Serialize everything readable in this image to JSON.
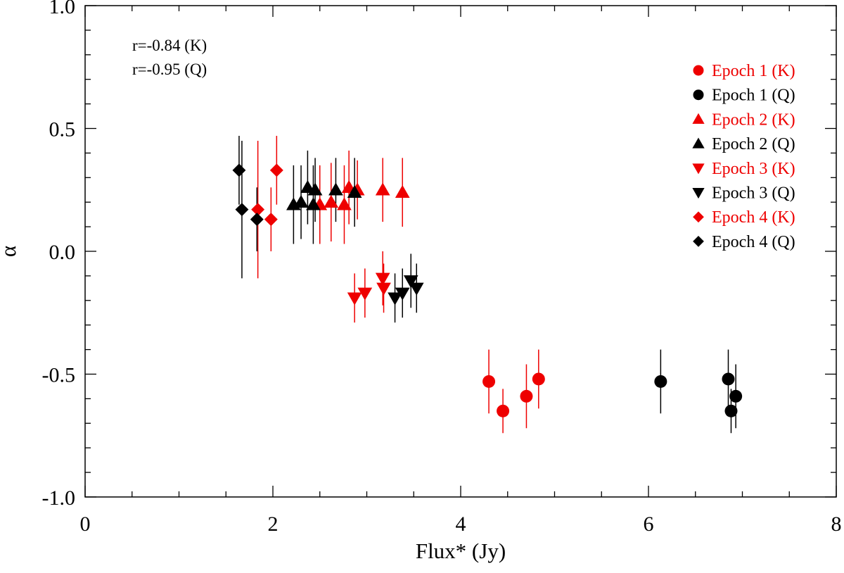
{
  "chart_data": {
    "type": "scatter",
    "xlabel": "Flux* (Jy)",
    "ylabel": "α",
    "xlim": [
      0,
      8
    ],
    "ylim": [
      -1.0,
      1.0
    ],
    "x_ticks": [
      "0",
      "2",
      "4",
      "6",
      "8"
    ],
    "y_ticks": [
      "1.0",
      "0.5",
      "0.0",
      "-0.5",
      "-1.0"
    ],
    "grid": false,
    "legend_placement": "top-right",
    "annotations": [
      "r=-0.84 (K)",
      "r=-0.95 (Q)"
    ],
    "colors": {
      "K": "#ee0000",
      "Q": "#000000"
    },
    "series": [
      {
        "name": "Epoch 1 (K)",
        "marker": "circle",
        "color": "#ee0000",
        "points": [
          {
            "x": 4.3,
            "y": -0.53,
            "err": 0.13
          },
          {
            "x": 4.45,
            "y": -0.65,
            "err": 0.09
          },
          {
            "x": 4.7,
            "y": -0.59,
            "err": 0.13
          },
          {
            "x": 4.83,
            "y": -0.52,
            "err": 0.12
          }
        ]
      },
      {
        "name": "Epoch 1 (Q)",
        "marker": "circle",
        "color": "#000000",
        "points": [
          {
            "x": 6.13,
            "y": -0.53,
            "err": 0.13
          },
          {
            "x": 6.85,
            "y": -0.52,
            "err": 0.12
          },
          {
            "x": 6.88,
            "y": -0.65,
            "err": 0.09
          },
          {
            "x": 6.93,
            "y": -0.59,
            "err": 0.13
          }
        ]
      },
      {
        "name": "Epoch 2 (K)",
        "marker": "triangle-up",
        "color": "#ee0000",
        "points": [
          {
            "x": 2.5,
            "y": 0.19,
            "err": 0.16
          },
          {
            "x": 2.62,
            "y": 0.2,
            "err": 0.16
          },
          {
            "x": 2.76,
            "y": 0.19,
            "err": 0.16
          },
          {
            "x": 2.81,
            "y": 0.26,
            "err": 0.15
          },
          {
            "x": 2.9,
            "y": 0.25,
            "err": 0.12
          },
          {
            "x": 3.17,
            "y": 0.25,
            "err": 0.13
          },
          {
            "x": 3.38,
            "y": 0.24,
            "err": 0.14
          }
        ]
      },
      {
        "name": "Epoch 2 (Q)",
        "marker": "triangle-up",
        "color": "#000000",
        "points": [
          {
            "x": 2.22,
            "y": 0.19,
            "err": 0.16
          },
          {
            "x": 2.3,
            "y": 0.2,
            "err": 0.15
          },
          {
            "x": 2.37,
            "y": 0.26,
            "err": 0.15
          },
          {
            "x": 2.43,
            "y": 0.19,
            "err": 0.16
          },
          {
            "x": 2.45,
            "y": 0.25,
            "err": 0.13
          },
          {
            "x": 2.67,
            "y": 0.25,
            "err": 0.13
          },
          {
            "x": 2.87,
            "y": 0.24,
            "err": 0.14
          }
        ]
      },
      {
        "name": "Epoch 3 (K)",
        "marker": "triangle-down",
        "color": "#ee0000",
        "points": [
          {
            "x": 2.87,
            "y": -0.19,
            "err": 0.1
          },
          {
            "x": 2.98,
            "y": -0.17,
            "err": 0.1
          },
          {
            "x": 3.17,
            "y": -0.11,
            "err": 0.11
          },
          {
            "x": 3.18,
            "y": -0.15,
            "err": 0.1
          }
        ]
      },
      {
        "name": "Epoch 3 (Q)",
        "marker": "triangle-down",
        "color": "#000000",
        "points": [
          {
            "x": 3.3,
            "y": -0.19,
            "err": 0.1
          },
          {
            "x": 3.38,
            "y": -0.17,
            "err": 0.1
          },
          {
            "x": 3.47,
            "y": -0.12,
            "err": 0.11
          },
          {
            "x": 3.53,
            "y": -0.15,
            "err": 0.1
          }
        ]
      },
      {
        "name": "Epoch 4 (K)",
        "marker": "diamond",
        "color": "#ee0000",
        "points": [
          {
            "x": 1.84,
            "y": 0.17,
            "err": 0.28
          },
          {
            "x": 1.98,
            "y": 0.13,
            "err": 0.13
          },
          {
            "x": 2.04,
            "y": 0.33,
            "err": 0.14
          }
        ]
      },
      {
        "name": "Epoch 4 (Q)",
        "marker": "diamond",
        "color": "#000000",
        "points": [
          {
            "x": 1.64,
            "y": 0.33,
            "err": 0.14
          },
          {
            "x": 1.67,
            "y": 0.17,
            "err": 0.28
          },
          {
            "x": 1.83,
            "y": 0.13,
            "err": 0.13
          }
        ]
      }
    ]
  }
}
